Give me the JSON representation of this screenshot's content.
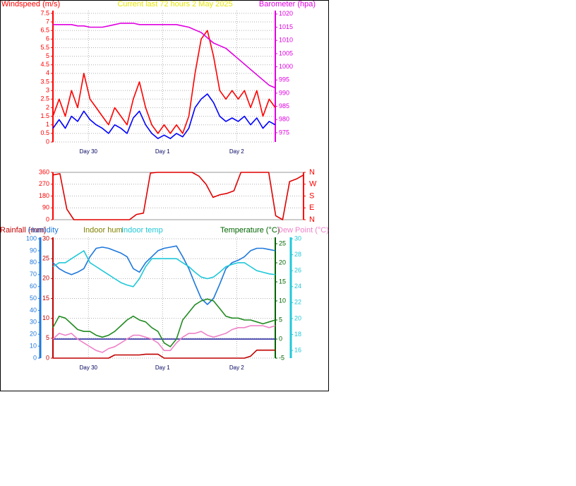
{
  "chart_data": [
    {
      "type": "line",
      "title": "Current last 72 hours 2 May 2025",
      "title_color": "#e6e600",
      "x": [
        0,
        2,
        4,
        6,
        8,
        10,
        12,
        14,
        16,
        18,
        20,
        22,
        24,
        26,
        28,
        30,
        32,
        34,
        36,
        38,
        40,
        42,
        44,
        46,
        48,
        50,
        52,
        54,
        56,
        58,
        60,
        62,
        64,
        66,
        68,
        70,
        72
      ],
      "xlim": [
        0,
        72
      ],
      "xticks": [
        {
          "value": 11.5,
          "label": "Day 30"
        },
        {
          "value": 35.5,
          "label": "Day 1"
        },
        {
          "value": 59.5,
          "label": "Day 2"
        }
      ],
      "grid": true,
      "axes": [
        {
          "title": "Windspeed (m/s)",
          "side": "left",
          "color": "#ff0000",
          "lim": [
            0,
            7.66
          ],
          "ticks": [
            0,
            0.5,
            1,
            1.5,
            2,
            2.5,
            3,
            3.5,
            4,
            4.5,
            5,
            5.5,
            6,
            6.5,
            7,
            7.5
          ]
        },
        {
          "title": "Barometer (hpa)",
          "side": "right",
          "color": "#e000e0",
          "lim": [
            971.5,
            1021.3
          ],
          "ticks": [
            975,
            980,
            985,
            990,
            995,
            1000,
            1005,
            1010,
            1015,
            1020
          ]
        }
      ],
      "series": [
        {
          "color": "#ff0000",
          "axis": 0,
          "values": [
            1.5,
            2.5,
            1.5,
            3,
            2,
            4,
            2.5,
            2,
            1.5,
            1,
            2,
            1.5,
            1,
            2.5,
            3.5,
            2,
            1,
            0.5,
            1,
            0.5,
            1,
            0.5,
            1.5,
            4,
            6,
            6.5,
            5,
            3,
            2.5,
            3,
            2.5,
            3,
            2,
            3,
            1.5,
            2.5,
            2
          ]
        },
        {
          "color": "#0000ff",
          "axis": 0,
          "values": [
            0.8,
            1.3,
            0.8,
            1.5,
            1.2,
            1.8,
            1.3,
            1,
            0.8,
            0.5,
            1,
            0.8,
            0.5,
            1.4,
            1.8,
            1,
            0.5,
            0.2,
            0.4,
            0.2,
            0.5,
            0.3,
            0.8,
            2,
            2.5,
            2.8,
            2.3,
            1.5,
            1.2,
            1.4,
            1.2,
            1.5,
            1,
            1.4,
            0.8,
            1.2,
            1
          ]
        },
        {
          "color": "#e000e0",
          "axis": 1,
          "values": [
            1016,
            1016,
            1016,
            1016,
            1015.5,
            1015.5,
            1015,
            1015,
            1015,
            1015.5,
            1016,
            1016.5,
            1016.5,
            1016.5,
            1016,
            1016,
            1016,
            1016,
            1016,
            1016,
            1016,
            1015.5,
            1015,
            1014,
            1013,
            1011,
            1009,
            1008,
            1007,
            1005,
            1003,
            1001,
            999,
            997,
            995,
            993,
            992
          ]
        }
      ]
    },
    {
      "type": "line",
      "x": [
        0,
        2,
        4,
        6,
        8,
        10,
        12,
        14,
        16,
        18,
        20,
        22,
        24,
        26,
        28,
        30,
        32,
        34,
        36,
        38,
        40,
        42,
        44,
        46,
        48,
        50,
        52,
        54,
        56,
        58,
        60,
        62,
        64,
        66,
        68,
        70,
        72
      ],
      "xlim": [
        0,
        72
      ],
      "grid": true,
      "axes": [
        {
          "side": "left",
          "color": "#ff0000",
          "lim": [
            0,
            360
          ],
          "ticks": [
            0,
            90,
            180,
            270,
            360
          ]
        },
        {
          "side": "right",
          "color": "#ff0000",
          "lim": [
            0,
            360
          ],
          "ticks": [
            {
              "value": 0,
              "label": "N"
            },
            {
              "value": 90,
              "label": "E"
            },
            {
              "value": 180,
              "label": "S"
            },
            {
              "value": 270,
              "label": "W"
            },
            {
              "value": 360,
              "label": "N"
            }
          ]
        }
      ],
      "series": [
        {
          "color": "#e00000",
          "axis": 0,
          "values": [
            340,
            350,
            80,
            0,
            0,
            0,
            0,
            0,
            0,
            0,
            0,
            0,
            40,
            50,
            355,
            360,
            360,
            360,
            360,
            360,
            360,
            330,
            270,
            170,
            190,
            200,
            220,
            360,
            360,
            360,
            360,
            360,
            30,
            0,
            290,
            310,
            340
          ]
        }
      ]
    },
    {
      "type": "line",
      "legend": [
        {
          "text": "Rainfall (mm)",
          "color": "#c00000"
        },
        {
          "text": "Humidity",
          "color": "#1e78dc"
        },
        {
          "text": "Indoor hum",
          "color": "#808000"
        },
        {
          "text": "Indoor temp",
          "color": "#20c8d8"
        },
        {
          "text": "Temperature (°C)",
          "color": "#006400"
        },
        {
          "text": "Dew Point (°C)",
          "color": "#ee82c8"
        }
      ],
      "x": [
        0,
        2,
        4,
        6,
        8,
        10,
        12,
        14,
        16,
        18,
        20,
        22,
        24,
        26,
        28,
        30,
        32,
        34,
        36,
        38,
        40,
        42,
        44,
        46,
        48,
        50,
        52,
        54,
        56,
        58,
        60,
        62,
        64,
        66,
        68,
        70,
        72
      ],
      "xlim": [
        0,
        72
      ],
      "xticks": [
        {
          "value": 11.5,
          "label": "Day 30"
        },
        {
          "value": 35.5,
          "label": "Day 1"
        },
        {
          "value": 59.5,
          "label": "Day 2"
        }
      ],
      "grid": true,
      "axes": [
        {
          "side": "left",
          "color": "#c00000",
          "lim": [
            0,
            30.35
          ],
          "ticks": [
            0,
            5,
            10,
            15,
            20,
            25,
            30
          ]
        },
        {
          "side": "left",
          "color": "#1e78dc",
          "lim": [
            0,
            101.2
          ],
          "ticks": [
            0,
            10,
            20,
            30,
            40,
            50,
            60,
            70,
            80,
            90,
            100
          ]
        },
        {
          "side": "right",
          "color": "#006400",
          "lim": [
            -5,
            26.67
          ],
          "ticks": [
            -5,
            0,
            5,
            10,
            15,
            20,
            25
          ]
        },
        {
          "side": "right",
          "color": "#20c8d8",
          "lim": [
            15.03,
            30.18
          ],
          "ticks": [
            16,
            18,
            20,
            22,
            24,
            26,
            28,
            30
          ]
        }
      ],
      "series": [
        {
          "color": "#c00000",
          "axis": 0,
          "values": [
            0,
            0,
            0,
            0,
            0,
            0,
            0,
            0,
            0,
            0,
            0.8,
            0.8,
            0.8,
            0.8,
            0.8,
            1,
            1,
            1,
            0,
            0,
            0,
            0,
            0,
            0,
            0,
            0,
            0,
            0,
            0,
            0,
            0,
            0,
            0.5,
            2,
            2,
            2,
            2
          ]
        },
        {
          "color": "#1e78dc",
          "axis": 1,
          "values": [
            80,
            75,
            72,
            70,
            72,
            75,
            85,
            92,
            93,
            92,
            90,
            88,
            85,
            75,
            72,
            80,
            85,
            90,
            92,
            93,
            94,
            85,
            75,
            62,
            50,
            45,
            50,
            62,
            75,
            80,
            82,
            85,
            90,
            92,
            92,
            91,
            90
          ]
        },
        {
          "color": "#20c8d8",
          "axis": 3,
          "values": [
            26.5,
            27,
            27,
            27.5,
            28,
            28.5,
            27,
            26.5,
            26,
            25.5,
            25,
            24.5,
            24.2,
            24,
            25,
            26.5,
            27.5,
            27.5,
            27.5,
            27.5,
            27.5,
            27,
            26.5,
            25.8,
            25.2,
            25,
            25.2,
            25.8,
            26.5,
            26.8,
            27,
            27,
            26.5,
            26,
            25.8,
            25.6,
            25.5
          ]
        },
        {
          "color": "#ee82c8",
          "axis": 2,
          "values": [
            0,
            1.5,
            1,
            1.5,
            0,
            -1,
            -2,
            -3,
            -3.5,
            -2.5,
            -2,
            -1,
            0,
            1,
            1,
            0.5,
            0,
            -1,
            -3,
            -3,
            -1,
            0.5,
            1.5,
            1.5,
            2,
            1,
            0.5,
            1,
            1.5,
            2.5,
            3,
            3,
            3.5,
            3.5,
            3.5,
            3,
            3.5
          ]
        },
        {
          "color": "#228b22",
          "axis": 2,
          "values": [
            3,
            6,
            5.5,
            4,
            2.5,
            2,
            2,
            1,
            0.5,
            1,
            2,
            3.5,
            5,
            6,
            5,
            4.5,
            3,
            2,
            -1,
            -2,
            0,
            5,
            7,
            9,
            10,
            10.5,
            10,
            8,
            6,
            5.5,
            5.5,
            5,
            5,
            4.5,
            4,
            4.5,
            5
          ]
        }
      ]
    }
  ]
}
